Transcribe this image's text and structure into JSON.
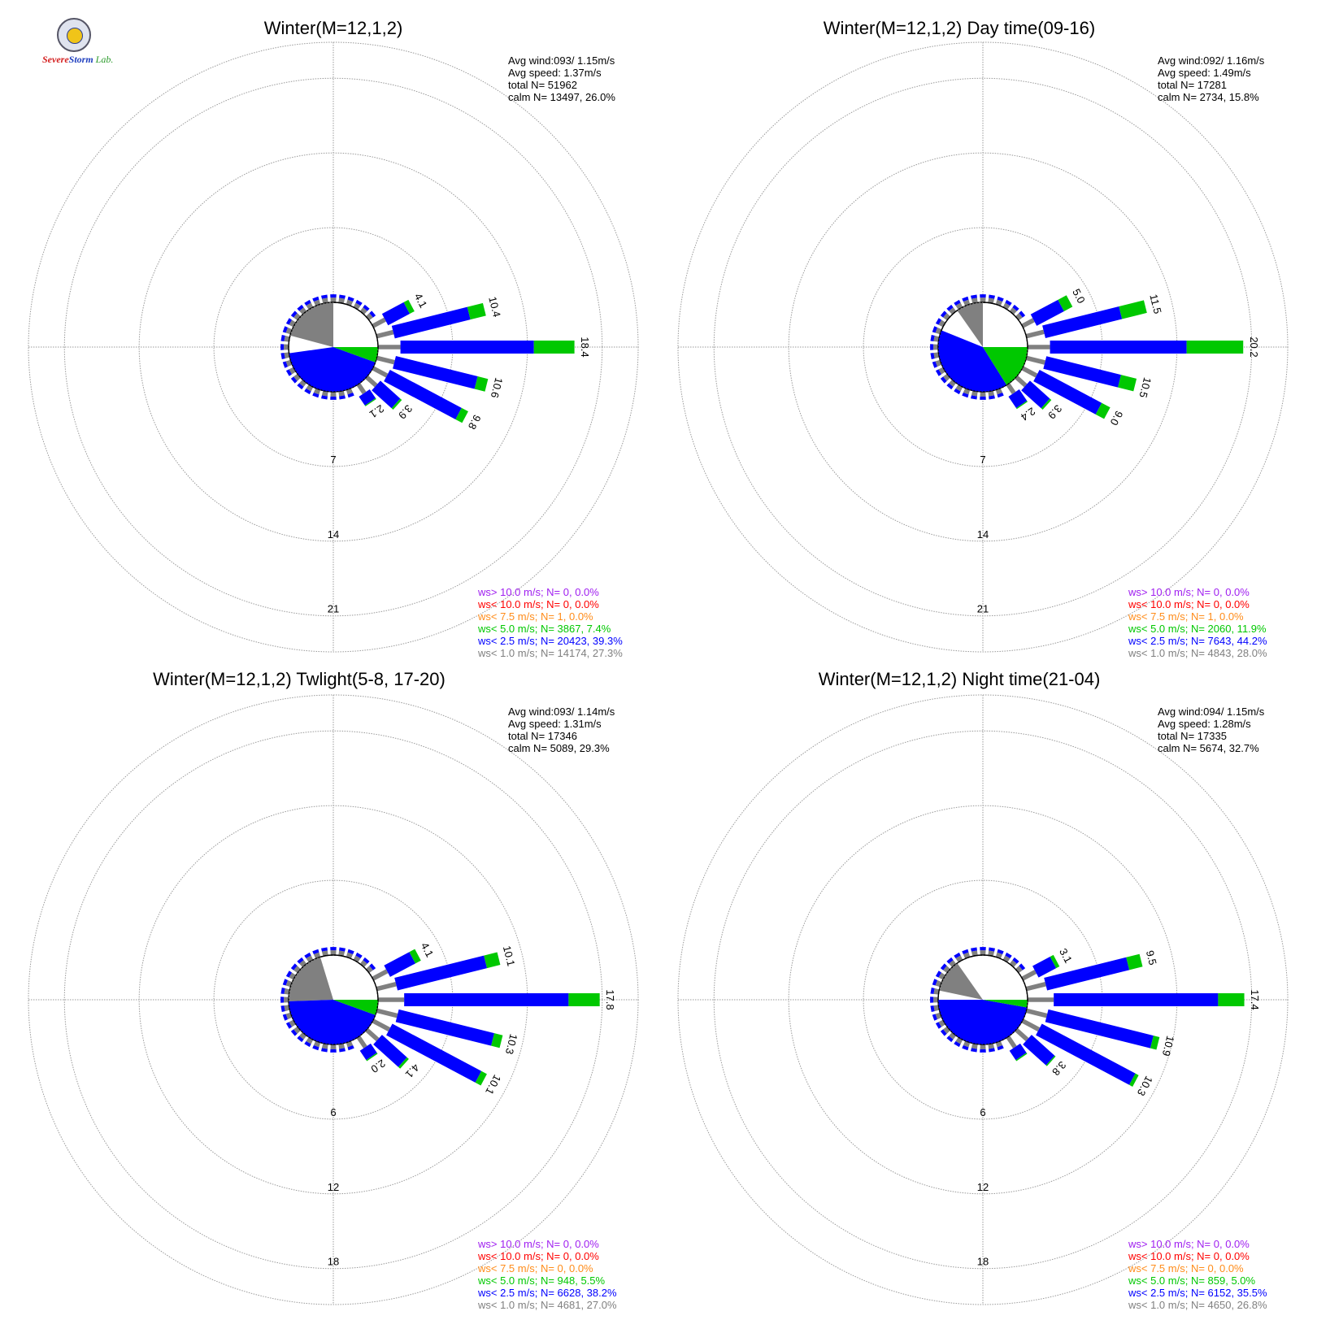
{
  "logo": {
    "part1": "Severe",
    "part2": "Storm",
    "part3": "Lab."
  },
  "colors": {
    "ws_gt10": "#a020f0",
    "ws_lt10": "#ff0000",
    "ws_lt75": "#ff8c1a",
    "ws_lt50": "#00c800",
    "ws_lt25": "#0000ff",
    "ws_lt10ms": "#808080",
    "grid": "#9a9a9a",
    "text": "#000000"
  },
  "chart_data": [
    {
      "type": "windrose",
      "title": "Winter(M=12,1,2)",
      "stats": [
        "Avg wind:093/ 1.15m/s",
        "Avg speed: 1.37m/s",
        "total N=       51962",
        "calm N=  13497,  26.0%"
      ],
      "ring_labels": [
        "7",
        "14",
        "21"
      ],
      "ring_values": [
        7,
        14,
        21
      ],
      "calm_pie": [
        {
          "name": "ws< 1.0",
          "start": 285,
          "end": 360
        },
        {
          "name": "ws< 2.5",
          "start": 110,
          "end": 262
        },
        {
          "name": "ws< 5.0",
          "start": 90,
          "end": 110
        }
      ],
      "directions": [
        {
          "dir": 62,
          "total": 4.1,
          "calm": 1.3,
          "ws1": 2.3,
          "ws2": 0.5,
          "label": "4.1"
        },
        {
          "dir": 76,
          "total": 10.4,
          "calm": 1.6,
          "ws1": 7.3,
          "ws2": 1.5,
          "label": "10.4"
        },
        {
          "dir": 90,
          "total": 18.4,
          "calm": 2.1,
          "ws1": 12.5,
          "ws2": 3.8,
          "label": "18.4"
        },
        {
          "dir": 104,
          "total": 10.6,
          "calm": 1.7,
          "ws1": 7.9,
          "ws2": 1.0,
          "label": "10.6"
        },
        {
          "dir": 118,
          "total": 9.8,
          "calm": 1.5,
          "ws1": 7.6,
          "ws2": 0.7,
          "label": "9.8"
        },
        {
          "dir": 132,
          "total": 3.9,
          "calm": 1.2,
          "ws1": 2.5,
          "ws2": 0.2,
          "label": "3.9"
        },
        {
          "dir": 146,
          "total": 2.1,
          "calm": 1.0,
          "ws1": 1.0,
          "ws2": 0.1,
          "label": "2.1"
        }
      ],
      "legend": [
        "ws> 10.0 m/s; N=     0,  0.0%",
        "ws< 10.0 m/s; N=     0,  0.0%",
        "ws<  7.5 m/s; N=     1,  0.0%",
        "ws<  5.0 m/s; N=  3867,  7.4%",
        "ws<  2.5 m/s; N= 20423, 39.3%",
        "ws<  1.0 m/s; N= 14174, 27.3%"
      ]
    },
    {
      "type": "windrose",
      "title": "Winter(M=12,1,2) Day time(09-16)",
      "stats": [
        "Avg wind:092/ 1.16m/s",
        "Avg speed: 1.49m/s",
        "total N=       17281",
        "calm N=   2734,  15.8%"
      ],
      "ring_labels": [
        "7",
        "14",
        "21"
      ],
      "ring_values": [
        7,
        14,
        21
      ],
      "calm_pie": [
        {
          "name": "ws< 1.0",
          "start": 325,
          "end": 360
        },
        {
          "name": "ws< 2.5",
          "start": 148,
          "end": 292
        },
        {
          "name": "ws< 5.0",
          "start": 90,
          "end": 148
        }
      ],
      "directions": [
        {
          "dir": 62,
          "total": 5.0,
          "calm": 1.2,
          "ws1": 2.9,
          "ws2": 0.9,
          "label": "5.0"
        },
        {
          "dir": 76,
          "total": 11.5,
          "calm": 1.7,
          "ws1": 7.4,
          "ws2": 2.4,
          "label": "11.5"
        },
        {
          "dir": 90,
          "total": 20.2,
          "calm": 2.1,
          "ws1": 12.8,
          "ws2": 5.3,
          "label": "20.2"
        },
        {
          "dir": 104,
          "total": 10.5,
          "calm": 1.8,
          "ws1": 7.2,
          "ws2": 1.5,
          "label": "10.5"
        },
        {
          "dir": 118,
          "total": 9.0,
          "calm": 1.5,
          "ws1": 6.6,
          "ws2": 0.9,
          "label": "9.0"
        },
        {
          "dir": 132,
          "total": 3.9,
          "calm": 1.2,
          "ws1": 2.5,
          "ws2": 0.2,
          "label": "3.9"
        },
        {
          "dir": 146,
          "total": 2.4,
          "calm": 1.0,
          "ws1": 1.3,
          "ws2": 0.1,
          "label": "2.4"
        }
      ],
      "legend": [
        "ws> 10.0 m/s; N=     0,  0.0%",
        "ws< 10.0 m/s; N=     0,  0.0%",
        "ws<  7.5 m/s; N=     1,  0.0%",
        "ws<  5.0 m/s; N=  2060, 11.9%",
        "ws<  2.5 m/s; N=  7643, 44.2%",
        "ws<  1.0 m/s; N=  4843, 28.0%"
      ]
    },
    {
      "type": "windrose",
      "title": "Winter(M=12,1,2) Twlight(5-8, 17-20)",
      "stats": [
        "Avg wind:093/ 1.14m/s",
        "Avg speed: 1.31m/s",
        "total N=       17346",
        "calm N=   5089,  29.3%"
      ],
      "ring_labels": [
        "6",
        "12",
        "18"
      ],
      "ring_values": [
        6,
        12,
        18
      ],
      "calm_pie": [
        {
          "name": "ws< 1.0",
          "start": 268,
          "end": 343
        },
        {
          "name": "ws< 2.5",
          "start": 110,
          "end": 268
        },
        {
          "name": "ws< 5.0",
          "start": 90,
          "end": 110
        }
      ],
      "directions": [
        {
          "dir": 62,
          "total": 4.1,
          "calm": 1.3,
          "ws1": 2.3,
          "ws2": 0.5,
          "label": "4.1"
        },
        {
          "dir": 76,
          "total": 10.1,
          "calm": 1.6,
          "ws1": 7.4,
          "ws2": 1.1,
          "label": "10.1"
        },
        {
          "dir": 90,
          "total": 17.8,
          "calm": 2.1,
          "ws1": 13.2,
          "ws2": 2.5,
          "label": "17.8"
        },
        {
          "dir": 104,
          "total": 10.3,
          "calm": 1.7,
          "ws1": 7.9,
          "ws2": 0.7,
          "label": "10.3"
        },
        {
          "dir": 118,
          "total": 10.1,
          "calm": 1.5,
          "ws1": 8.1,
          "ws2": 0.5,
          "label": "10.1"
        },
        {
          "dir": 132,
          "total": 4.1,
          "calm": 1.2,
          "ws1": 2.7,
          "ws2": 0.2,
          "label": "4.1"
        },
        {
          "dir": 146,
          "total": 2.0,
          "calm": 1.0,
          "ws1": 0.9,
          "ws2": 0.1,
          "label": "2.0"
        }
      ],
      "legend": [
        "ws> 10.0 m/s; N=     0,  0.0%",
        "ws< 10.0 m/s; N=     0,  0.0%",
        "ws<  7.5 m/s; N=     0,  0.0%",
        "ws<  5.0 m/s; N=   948,  5.5%",
        "ws<  2.5 m/s; N=  6628, 38.2%",
        "ws<  1.0 m/s; N=  4681, 27.0%"
      ]
    },
    {
      "type": "windrose",
      "title": "Winter(M=12,1,2) Night time(21-04)",
      "stats": [
        "Avg wind:094/ 1.15m/s",
        "Avg speed: 1.28m/s",
        "total N=       17335",
        "calm N=   5674,  32.7%"
      ],
      "ring_labels": [
        "6",
        "12",
        "18"
      ],
      "ring_values": [
        6,
        12,
        18
      ],
      "calm_pie": [
        {
          "name": "ws< 1.0",
          "start": 282,
          "end": 325
        },
        {
          "name": "ws< 2.5",
          "start": 100,
          "end": 270
        },
        {
          "name": "ws< 5.0",
          "start": 90,
          "end": 100
        }
      ],
      "directions": [
        {
          "dir": 62,
          "total": 3.1,
          "calm": 1.2,
          "ws1": 1.6,
          "ws2": 0.3,
          "label": "3.1"
        },
        {
          "dir": 76,
          "total": 9.5,
          "calm": 1.6,
          "ws1": 6.8,
          "ws2": 1.1,
          "label": "9.5"
        },
        {
          "dir": 90,
          "total": 17.4,
          "calm": 2.1,
          "ws1": 13.2,
          "ws2": 2.1,
          "label": "17.4"
        },
        {
          "dir": 104,
          "total": 10.9,
          "calm": 1.7,
          "ws1": 8.7,
          "ws2": 0.5,
          "label": "10.9"
        },
        {
          "dir": 118,
          "total": 10.3,
          "calm": 1.5,
          "ws1": 8.5,
          "ws2": 0.3,
          "label": "10.3"
        },
        {
          "dir": 132,
          "total": 3.8,
          "calm": 1.2,
          "ws1": 2.5,
          "ws2": 0.1,
          "label": "3.8"
        },
        {
          "dir": 146,
          "total": 2.0,
          "calm": 1.0,
          "ws1": 0.9,
          "ws2": 0.1,
          "label": ""
        }
      ],
      "legend": [
        "ws> 10.0 m/s; N=     0,  0.0%",
        "ws< 10.0 m/s; N=     0,  0.0%",
        "ws<  7.5 m/s; N=     0,  0.0%",
        "ws<  5.0 m/s; N=   859,  5.0%",
        "ws<  2.5 m/s; N=  6152, 35.5%",
        "ws<  1.0 m/s; N=  4650, 26.8%"
      ]
    }
  ]
}
